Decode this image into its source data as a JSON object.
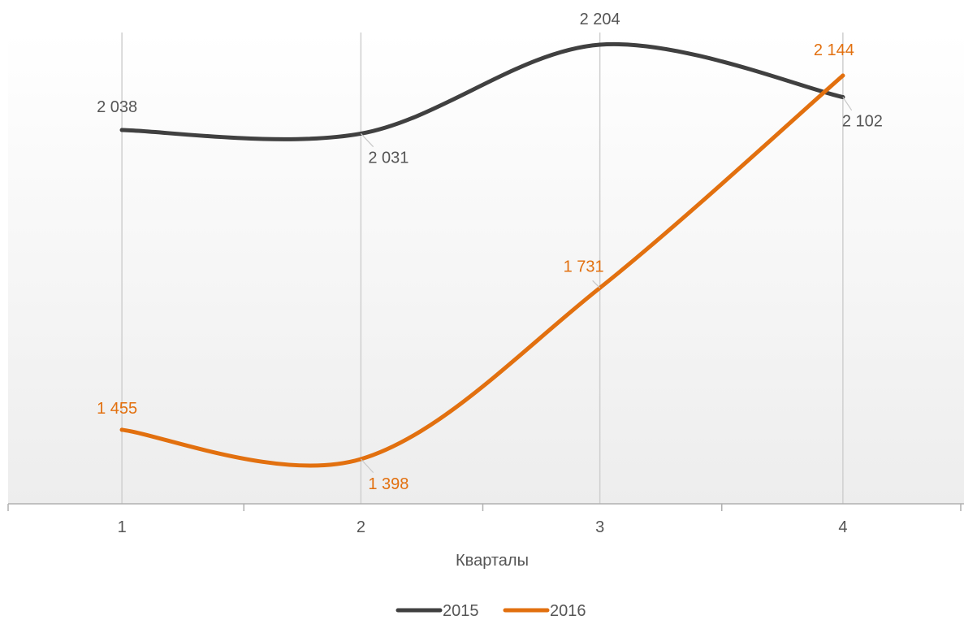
{
  "chart_data": {
    "type": "line",
    "categories": [
      "1",
      "2",
      "3",
      "4"
    ],
    "xlabel": "Кварталы",
    "ylabel": "",
    "ylim": [
      1300,
      2250
    ],
    "smooth": true,
    "grid": "vertical",
    "legend": "bottom",
    "series": [
      {
        "name": "2015",
        "values": [
          2038,
          2031,
          2204,
          2102
        ],
        "labels": [
          "2 038",
          "2 031",
          "2 204",
          "2 102"
        ],
        "color": "#404040"
      },
      {
        "name": "2016",
        "values": [
          1455,
          1398,
          1731,
          2144
        ],
        "labels": [
          "1 455",
          "1 398",
          "1 731",
          "2 144"
        ],
        "color": "#E2700F"
      }
    ]
  }
}
